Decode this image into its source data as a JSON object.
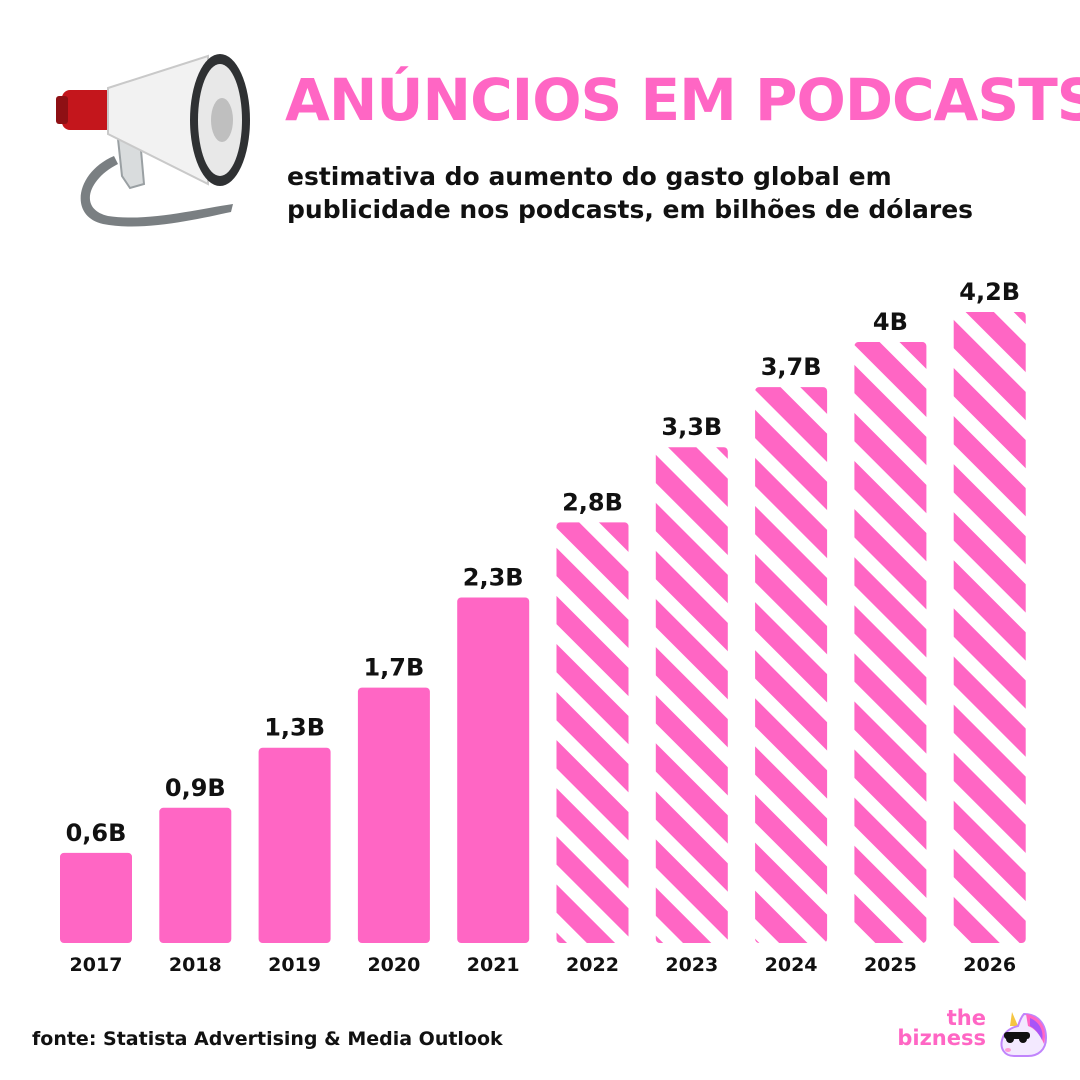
{
  "header": {
    "title": "ANÚNCIOS EM PODCASTS",
    "subtitle": "estimativa do aumento do gasto global em publicidade nos podcasts, em bilhões de dólares",
    "icon": "megaphone-icon"
  },
  "chart_data": {
    "type": "bar",
    "title": "ANÚNCIOS EM PODCASTS",
    "subtitle": "estimativa do aumento do gasto global em publicidade nos podcasts, em bilhões de dólares",
    "categories": [
      "2017",
      "2018",
      "2019",
      "2020",
      "2021",
      "2022",
      "2023",
      "2024",
      "2025",
      "2026"
    ],
    "values": [
      0.6,
      0.9,
      1.3,
      1.7,
      2.3,
      2.8,
      3.3,
      3.7,
      4.0,
      4.2
    ],
    "value_labels": [
      "0,6B",
      "0,9B",
      "1,3B",
      "1,7B",
      "2,3B",
      "2,8B",
      "3,3B",
      "3,7B",
      "4B",
      "4,2B"
    ],
    "estimated": [
      false,
      false,
      false,
      false,
      false,
      true,
      true,
      true,
      true,
      true
    ],
    "ylim": [
      0,
      4.2
    ],
    "grid": false,
    "colors": {
      "bar": "#ff66c4",
      "text": "#111111"
    }
  },
  "footer": {
    "source": "fonte: Statista Advertising & Media Outlook",
    "brand_line1": "the",
    "brand_line2": "bizness",
    "brand_icon": "unicorn-icon"
  }
}
